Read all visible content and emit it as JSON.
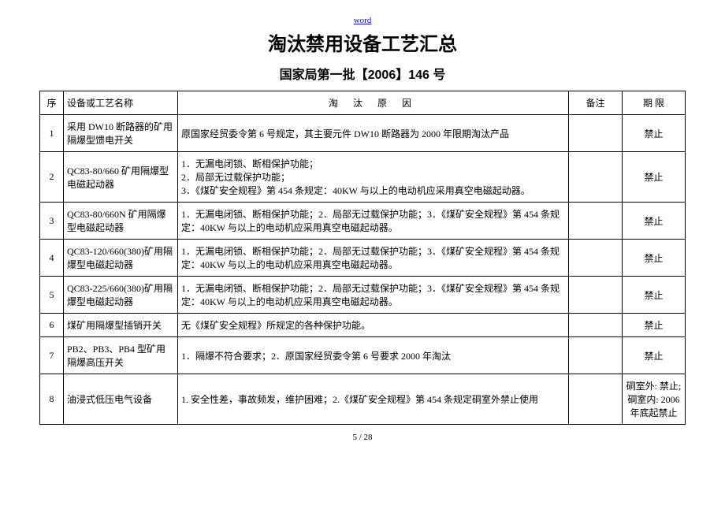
{
  "header_link": "word",
  "title": "淘汰禁用设备工艺汇总",
  "subtitle": "国家局第一批【2006】146 号",
  "columns": {
    "seq": "序",
    "name": "设备或工艺名称",
    "reason": "淘 汰 原 因",
    "remark": "备注",
    "limit": "期 限"
  },
  "rows": [
    {
      "seq": "1",
      "name": "采用 DW10 断路器的矿用隔爆型馈电开关",
      "reason": "原国家经贸委令第 6 号规定，其主要元件 DW10 断路器为 2000 年限期淘汰产品",
      "remark": "",
      "limit": "禁止"
    },
    {
      "seq": "2",
      "name": "QC83-80/660 矿用隔爆型电磁起动器",
      "reason": "1．无漏电闭锁、断相保护功能；\n2．局部无过载保护功能；\n3．《煤矿安全规程》第 454 条规定：40KW 与以上的电动机应采用真空电磁起动器。",
      "remark": "",
      "limit": "禁止"
    },
    {
      "seq": "3",
      "name": "QC83-80/660N 矿用隔爆型电磁起动器",
      "reason": "1．无漏电闭锁、断相保护功能；2．局部无过载保护功能；3．《煤矿安全规程》第 454 条规定：40KW 与以上的电动机应采用真空电磁起动器。",
      "remark": "",
      "limit": "禁止"
    },
    {
      "seq": "4",
      "name": "QC83-120/660(380)矿用隔爆型电磁起动器",
      "reason": "1．无漏电闭锁、断相保护功能；2．局部无过载保护功能；3．《煤矿安全规程》第 454 条规定：40KW 与以上的电动机应采用真空电磁起动器。",
      "remark": "",
      "limit": "禁止"
    },
    {
      "seq": "5",
      "name": "QC83-225/660(380)矿用隔爆型电磁起动器",
      "reason": "1．无漏电闭锁、断相保护功能；2．局部无过载保护功能；3．《煤矿安全规程》第 454 条规定：40KW 与以上的电动机应采用真空电磁起动器。",
      "remark": "",
      "limit": "禁止"
    },
    {
      "seq": "6",
      "name": "煤矿用隔爆型插销开关",
      "reason": "无《煤矿安全规程》所规定的各种保护功能。",
      "remark": "",
      "limit": "禁止"
    },
    {
      "seq": "7",
      "name": "PB2、PB3、PB4 型矿用隔爆高压开关",
      "reason": "1．隔爆不符合要求；2．原国家经贸委令第 6 号要求 2000 年淘汰",
      "remark": "",
      "limit": "禁止"
    },
    {
      "seq": "8",
      "name": "油浸式低压电气设备",
      "reason": "1. 安全性差，事故频发，维护困难；2.《煤矿安全规程》第 454 条规定硐室外禁止使用",
      "remark": "",
      "limit": "硐室外: 禁止; 硐室内: 2006 年底起禁止"
    }
  ],
  "footer": "5 / 28"
}
